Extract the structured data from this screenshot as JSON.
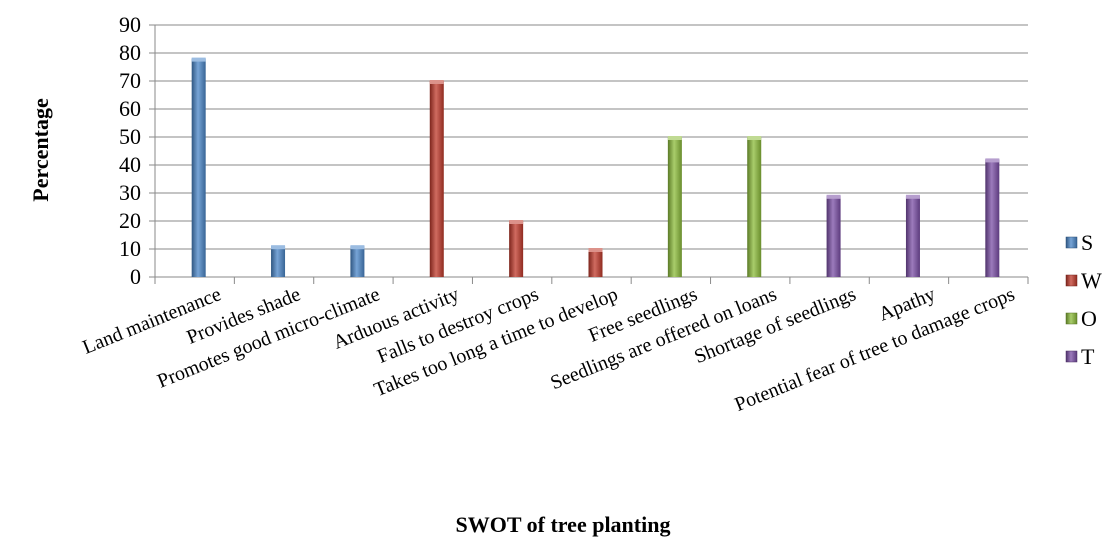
{
  "chart_data": {
    "type": "bar",
    "title": "",
    "xlabel": "SWOT of tree planting",
    "ylabel": "Percentage",
    "ylim": [
      0,
      90
    ],
    "ytick_step": 10,
    "grid": true,
    "legend_position": "right",
    "categories": [
      "Land maintenance",
      "Provides shade",
      "Promotes good micro-climate",
      "Arduous activity",
      "Falls to destroy crops",
      "Takes too long a time to develop",
      "Free seedlings",
      "Seedlings are offered on loans",
      "Shortage of seedlings",
      "Apathy",
      "Potential fear of tree to damage crops"
    ],
    "series": [
      {
        "name": "S",
        "color": "#4a86c8",
        "values": [
          78,
          11,
          11,
          null,
          null,
          null,
          null,
          null,
          null,
          null,
          null
        ]
      },
      {
        "name": "W",
        "color": "#c0392b",
        "values": [
          null,
          null,
          null,
          70,
          20,
          10,
          null,
          null,
          null,
          null,
          null
        ]
      },
      {
        "name": "O",
        "color": "#8cbc3a",
        "values": [
          null,
          null,
          null,
          null,
          null,
          null,
          50,
          50,
          null,
          null,
          null
        ]
      },
      {
        "name": "T",
        "color": "#7b4fa6",
        "values": [
          null,
          null,
          null,
          null,
          null,
          null,
          null,
          null,
          29,
          29,
          42
        ]
      }
    ]
  }
}
